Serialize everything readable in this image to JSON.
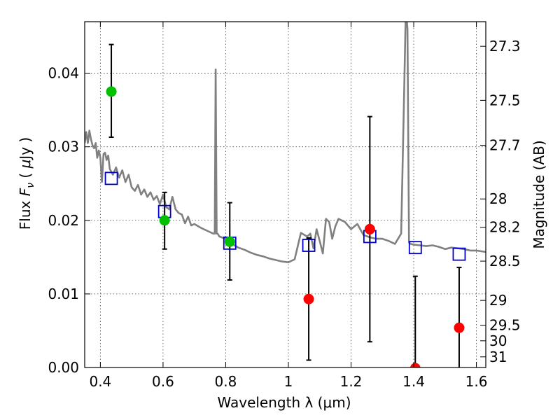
{
  "chart_data": {
    "type": "scatter",
    "xlabel": "Wavelength  λ (μm)",
    "ylabel": "Flux  F_ν  ( μJy )",
    "ylabel_parts": [
      "Flux  ",
      "F",
      "ν",
      "  ( ",
      "μ",
      "Jy )"
    ],
    "y2label": "Magnitude (AB)",
    "xlim": [
      0.35,
      1.63
    ],
    "ylim": [
      0.0,
      0.047
    ],
    "grid": true,
    "x_ticks": [
      0.4,
      0.6,
      0.8,
      1.0,
      1.2,
      1.4,
      1.6
    ],
    "x_tick_labels": [
      "0.4",
      "0.6",
      "0.8",
      "1",
      "1.2",
      "1.4",
      "1.6"
    ],
    "y_ticks": [
      0.0,
      0.01,
      0.02,
      0.03,
      0.04
    ],
    "y_tick_labels": [
      "0.00",
      "0.01",
      "0.02",
      "0.03",
      "0.04"
    ],
    "mag_ticks": [
      27.3,
      27.5,
      27.7,
      28,
      28.2,
      28.5,
      29,
      29.5,
      30,
      31
    ],
    "mag_tick_labels": [
      "27.3",
      "27.5",
      "27.7",
      "28",
      "28.2",
      "28.5",
      "29",
      "29.5",
      "30",
      "31"
    ],
    "series": [
      {
        "marker": "line",
        "color": "#808080",
        "x": [
          0.35,
          0.355,
          0.36,
          0.365,
          0.37,
          0.375,
          0.38,
          0.385,
          0.39,
          0.395,
          0.4,
          0.405,
          0.41,
          0.415,
          0.42,
          0.425,
          0.43,
          0.44,
          0.45,
          0.46,
          0.47,
          0.48,
          0.49,
          0.5,
          0.51,
          0.52,
          0.53,
          0.54,
          0.55,
          0.56,
          0.57,
          0.58,
          0.59,
          0.6,
          0.61,
          0.62,
          0.63,
          0.64,
          0.65,
          0.66,
          0.67,
          0.68,
          0.69,
          0.7,
          0.72,
          0.74,
          0.76,
          0.765,
          0.768,
          0.771,
          0.774,
          0.78,
          0.8,
          0.82,
          0.84,
          0.86,
          0.88,
          0.9,
          0.92,
          0.94,
          0.96,
          0.98,
          1.0,
          1.02,
          1.04,
          1.06,
          1.07,
          1.08,
          1.09,
          1.1,
          1.11,
          1.12,
          1.13,
          1.14,
          1.15,
          1.16,
          1.18,
          1.2,
          1.22,
          1.24,
          1.26,
          1.28,
          1.3,
          1.32,
          1.34,
          1.36,
          1.37,
          1.375,
          1.38,
          1.385,
          1.39,
          1.4,
          1.42,
          1.44,
          1.46,
          1.48,
          1.5,
          1.52,
          1.54,
          1.56,
          1.58,
          1.6,
          1.63
        ],
        "y": [
          0.0305,
          0.032,
          0.0305,
          0.0322,
          0.031,
          0.0302,
          0.0298,
          0.0305,
          0.0285,
          0.0295,
          0.0285,
          0.0252,
          0.029,
          0.0292,
          0.0282,
          0.0288,
          0.027,
          0.0262,
          0.0272,
          0.0258,
          0.0268,
          0.0252,
          0.0262,
          0.0245,
          0.024,
          0.0248,
          0.0235,
          0.0242,
          0.0232,
          0.0238,
          0.0228,
          0.0233,
          0.0222,
          0.0235,
          0.0218,
          0.0215,
          0.0232,
          0.0215,
          0.021,
          0.0208,
          0.0196,
          0.0205,
          0.0193,
          0.0195,
          0.019,
          0.0186,
          0.0182,
          0.0182,
          0.0405,
          0.0182,
          0.0182,
          0.0178,
          0.0175,
          0.0168,
          0.0163,
          0.016,
          0.0156,
          0.0153,
          0.0151,
          0.0148,
          0.0146,
          0.0144,
          0.0143,
          0.0147,
          0.0183,
          0.0178,
          0.0182,
          0.0162,
          0.0188,
          0.0172,
          0.0155,
          0.0202,
          0.0198,
          0.0175,
          0.0192,
          0.0202,
          0.0198,
          0.0188,
          0.0195,
          0.018,
          0.0177,
          0.0175,
          0.0175,
          0.0172,
          0.0168,
          0.0182,
          0.0385,
          0.049,
          0.046,
          0.017,
          0.0168,
          0.0167,
          0.0166,
          0.0165,
          0.0166,
          0.0164,
          0.0161,
          0.0163,
          0.0162,
          0.0161,
          0.0159,
          0.0159,
          0.0157
        ]
      },
      {
        "marker": "square-open",
        "color": "#0000cc",
        "x": [
          0.435,
          0.605,
          0.813,
          1.065,
          1.26,
          1.405,
          1.545
        ],
        "y": [
          0.0257,
          0.0212,
          0.0169,
          0.0166,
          0.0178,
          0.0163,
          0.0154
        ]
      },
      {
        "marker": "circle-filled",
        "color": "#00c000",
        "x": [
          0.435,
          0.605,
          0.813
        ],
        "y": [
          0.0375,
          0.02,
          0.0171
        ],
        "yerr_low": [
          0.0313,
          0.0161,
          0.0119
        ],
        "yerr_high": [
          0.0439,
          0.0238,
          0.0224
        ]
      },
      {
        "marker": "circle-filled",
        "color": "#ff0000",
        "x": [
          1.065,
          1.26,
          1.405,
          1.545
        ],
        "y": [
          0.0093,
          0.0188,
          -0.0001,
          0.0054
        ],
        "yerr_low": [
          0.001,
          0.0035,
          -0.001,
          -0.001
        ],
        "yerr_high": [
          0.0176,
          0.0341,
          0.0124,
          0.0136
        ]
      }
    ]
  }
}
